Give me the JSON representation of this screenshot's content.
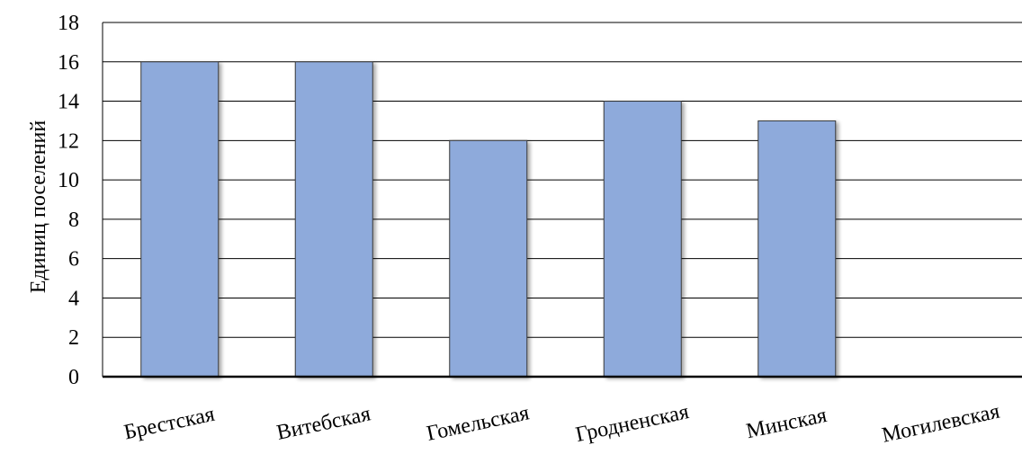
{
  "chart_data": {
    "type": "bar",
    "categories": [
      "Брестская",
      "Витебская",
      "Гомельская",
      "Гродненская",
      "Минская",
      "Могилевская"
    ],
    "values": [
      16,
      16,
      12,
      14,
      13,
      0
    ],
    "title": "",
    "xlabel": "",
    "ylabel": "Единиц поселений",
    "ylim": [
      0,
      18
    ],
    "yticks": [
      0,
      2,
      4,
      6,
      8,
      10,
      12,
      14,
      16,
      18
    ],
    "grid": true,
    "legend": "none",
    "colors": {
      "bar_fill": "#8eaadb",
      "bar_stroke": "#3a3a3a",
      "grid": "#000000",
      "axis": "#000000"
    }
  }
}
